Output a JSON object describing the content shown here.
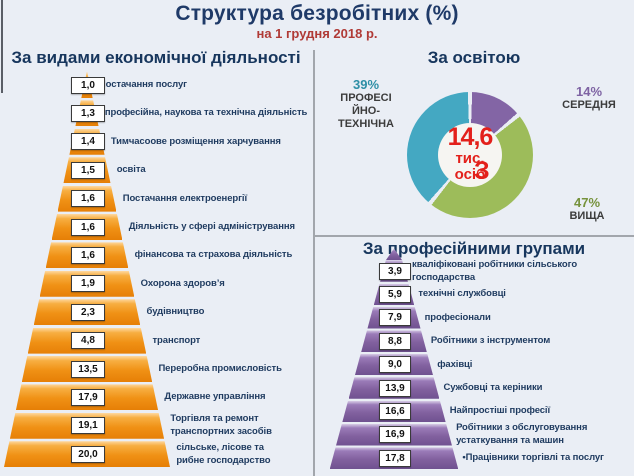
{
  "header": {
    "title": "Структура безробітних (%)",
    "subtitle": "на 1 грудня 2018 р."
  },
  "colors": {
    "title_navy": "#1F3A68",
    "subtitle_red": "#B03A36",
    "header_navy": "#17365D",
    "label_navy": "#1E3A5F",
    "divider_gray": "#A2A6AC"
  },
  "chart_data": [
    {
      "type": "bar",
      "subtype": "pyramid",
      "title": "За видами економічної діяльності",
      "unit": "%",
      "bar_color": "#F09115",
      "band_colors": [
        "#FFD9A0",
        "#F7AE42",
        "#F09115",
        "#E67F06"
      ],
      "items": [
        {
          "value": 1.0,
          "display": "1,0",
          "label": "Постачання послуг"
        },
        {
          "value": 1.3,
          "display": "1,3",
          "label": "професійна, наукова та технічна діяльність"
        },
        {
          "value": 1.4,
          "display": "1,4",
          "label": "Тимчасоове розміщення харчування"
        },
        {
          "value": 1.5,
          "display": "1,5",
          "label": "освіта"
        },
        {
          "value": 1.6,
          "display": "1,6",
          "label": "Постачання електроенергії"
        },
        {
          "value": 1.6,
          "display": "1,6",
          "label": "Діяльність у сфері адміністрування"
        },
        {
          "value": 1.6,
          "display": "1,6",
          "label": "фінансова та страхова діяльність"
        },
        {
          "value": 1.9,
          "display": "1,9",
          "label": "Охорона здоров’я"
        },
        {
          "value": 2.3,
          "display": "2,3",
          "label": "будівництво"
        },
        {
          "value": 4.8,
          "display": "4,8",
          "label": "транспорт"
        },
        {
          "value": 13.5,
          "display": "13,5",
          "label": "Переробна промисловість"
        },
        {
          "value": 17.9,
          "display": "17,9",
          "label": "Державне управління"
        },
        {
          "value": 19.1,
          "display": "19,1",
          "label": "Торгівля та ремонт транспортних засобів",
          "label_lines": [
            "Торгівля та ремонт",
            "транспортних засобів"
          ]
        },
        {
          "value": 20.0,
          "display": "20,0",
          "label": "сільське, лісове та рибне господарство",
          "label_lines": [
            "сільське, лісове та",
            "рибне господарство"
          ]
        }
      ]
    },
    {
      "type": "pie",
      "subtype": "donut",
      "title": "За освітою",
      "center": {
        "value": "14,6",
        "line2": "тис.",
        "line3": "осіб",
        "overlap_char": "З",
        "color": "#E3201B"
      },
      "slices": [
        {
          "name": "СЕРЕДНЯ",
          "pct": 14,
          "pct_display": "14%",
          "color": "#8365A5",
          "pct_color": "#7E63A3",
          "name_lines": [
            "СЕРЕДНЯ"
          ]
        },
        {
          "name": "ВИЩА",
          "pct": 47,
          "pct_display": "47%",
          "color": "#9DBC5A",
          "pct_color": "#76923C",
          "name_lines": [
            "ВИЩА"
          ]
        },
        {
          "name": "ПРОФЕСІЙНО-ТЕХНІЧНА",
          "pct": 39,
          "pct_display": "39%",
          "color": "#44A8C2",
          "pct_color": "#2E8FA6",
          "name_lines": [
            "ПРОФЕСІ",
            "ЙНО-",
            "ТЕХНІЧНА"
          ]
        }
      ]
    },
    {
      "type": "bar",
      "subtype": "pyramid",
      "title": "За професійними групами",
      "unit": "%",
      "bar_color": "#82619F",
      "band_colors": [
        "#D7CCE6",
        "#9A7BB8",
        "#82619F",
        "#6F5190"
      ],
      "items": [
        {
          "value": 3.9,
          "display": "3,9",
          "label": "кваліфіковані робітники сільського господарства",
          "label_lines": [
            "кваліфіковані робітники сільського",
            "господарства"
          ]
        },
        {
          "value": 5.9,
          "display": "5,9",
          "label": "технічні службовці"
        },
        {
          "value": 7.9,
          "display": "7,9",
          "label": "професіонали"
        },
        {
          "value": 8.8,
          "display": "8,8",
          "label": "Робітники з інструментом"
        },
        {
          "value": 9.0,
          "display": "9,0",
          "label": "фахівці"
        },
        {
          "value": 13.9,
          "display": "13,9",
          "label": "Сужбовці та керіники"
        },
        {
          "value": 16.6,
          "display": "16,6",
          "label": "Найпростіші професії"
        },
        {
          "value": 16.9,
          "display": "16,9",
          "label": "Робітники з обслуговування устаткування та машин",
          "label_lines": [
            "Робітники з обслуговування",
            "устаткування та машин"
          ]
        },
        {
          "value": 17.8,
          "display": "17,8",
          "label": "•Працівники торгівлі та послуг"
        }
      ]
    }
  ]
}
